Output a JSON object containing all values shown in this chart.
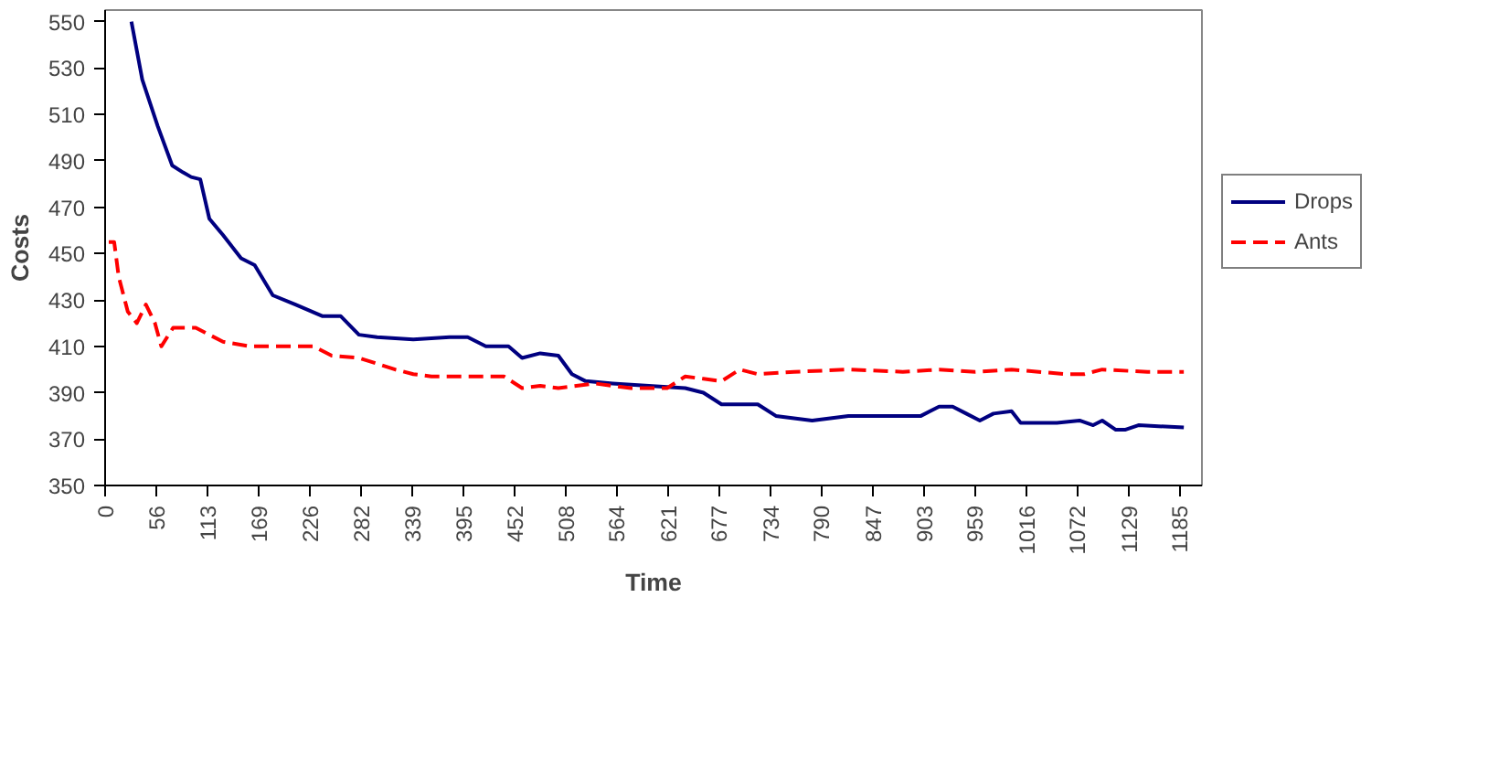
{
  "chart_data": {
    "type": "line",
    "xlabel": "Time",
    "ylabel": "Costs",
    "xlim": [
      0,
      1210
    ],
    "xticks": [
      0,
      56,
      113,
      169,
      226,
      282,
      339,
      395,
      452,
      508,
      564,
      621,
      677,
      734,
      790,
      847,
      903,
      959,
      1016,
      1072,
      1129,
      1185
    ],
    "ylim": [
      350,
      555
    ],
    "yticks": [
      350,
      370,
      390,
      410,
      430,
      450,
      470,
      490,
      510,
      530,
      550
    ],
    "grid": false,
    "legend": "right",
    "marker": "none",
    "series": [
      {
        "name": "Drops",
        "color": "#000080",
        "line_style": "solid",
        "x": [
          29,
          41,
          58,
          74,
          86,
          95,
          105,
          115,
          130,
          150,
          165,
          185,
          210,
          240,
          260,
          280,
          300,
          340,
          380,
          400,
          420,
          445,
          460,
          480,
          500,
          515,
          530,
          560,
          600,
          640,
          660,
          680,
          720,
          740,
          780,
          800,
          820,
          880,
          900,
          920,
          935,
          950,
          965,
          980,
          1000,
          1010,
          1050,
          1075,
          1090,
          1100,
          1115,
          1125,
          1140,
          1190
        ],
        "values": [
          550,
          525,
          505,
          488,
          485,
          483,
          482,
          465,
          458,
          448,
          445,
          432,
          428,
          423,
          423,
          415,
          414,
          413,
          414,
          414,
          410,
          410,
          405,
          407,
          406,
          398,
          395,
          394,
          393,
          392,
          390,
          385,
          385,
          380,
          378,
          379,
          380,
          380,
          380,
          384,
          384,
          381,
          378,
          381,
          382,
          377,
          377,
          378,
          376,
          378,
          374,
          374,
          376,
          375
        ]
      },
      {
        "name": "Ants",
        "color": "#ff0000",
        "line_style": "dashed",
        "x": [
          4,
          10,
          15,
          25,
          35,
          45,
          55,
          62,
          75,
          100,
          130,
          160,
          190,
          230,
          250,
          280,
          320,
          340,
          360,
          390,
          440,
          460,
          480,
          500,
          540,
          580,
          620,
          640,
          660,
          680,
          700,
          720,
          760,
          820,
          880,
          920,
          960,
          1000,
          1060,
          1080,
          1100,
          1150,
          1190
        ],
        "values": [
          455,
          455,
          440,
          425,
          420,
          428,
          420,
          410,
          418,
          418,
          412,
          410,
          410,
          410,
          406,
          405,
          400,
          398,
          397,
          397,
          397,
          392,
          393,
          392,
          394,
          392,
          392,
          397,
          396,
          395,
          400,
          398,
          399,
          400,
          399,
          400,
          399,
          400,
          398,
          398,
          400,
          399,
          399
        ]
      }
    ]
  }
}
